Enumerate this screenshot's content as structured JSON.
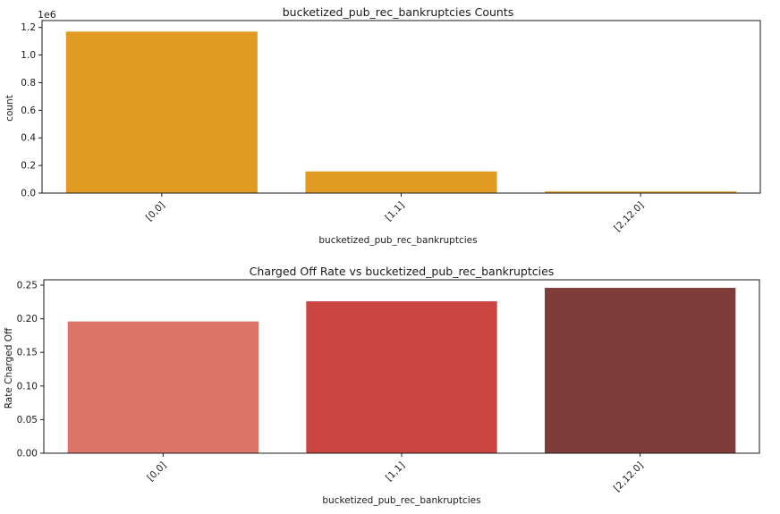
{
  "chart_data": [
    {
      "type": "bar",
      "title": "bucketized_pub_rec_bankruptcies Counts",
      "xlabel": "bucketized_pub_rec_bankruptcies",
      "ylabel": "count",
      "offset_label": "1e6",
      "categories": [
        "[0,0]",
        "[1,1]",
        "[2,12.0]"
      ],
      "values": [
        1170000,
        157000,
        12000
      ],
      "ylim": [
        0,
        1.25
      ],
      "yscale": 1000000,
      "yticks": [
        0.0,
        0.2,
        0.4,
        0.6,
        0.8,
        1.0,
        1.2
      ],
      "ytick_labels": [
        "0.0",
        "0.2",
        "0.4",
        "0.6",
        "0.8",
        "1.0",
        "1.2"
      ],
      "colors": [
        "#e09c22",
        "#e09c22",
        "#e09c22"
      ],
      "grid": false
    },
    {
      "type": "bar",
      "title": "Charged Off Rate vs bucketized_pub_rec_bankruptcies",
      "xlabel": "bucketized_pub_rec_bankruptcies",
      "ylabel": "Rate Charged Off",
      "categories": [
        "[0,0]",
        "[1,1]",
        "[2,12.0]"
      ],
      "values": [
        0.196,
        0.226,
        0.246
      ],
      "ylim": [
        0,
        0.258
      ],
      "yscale": 1,
      "yticks": [
        0.0,
        0.05,
        0.1,
        0.15,
        0.2,
        0.25
      ],
      "ytick_labels": [
        "0.00",
        "0.05",
        "0.10",
        "0.15",
        "0.20",
        "0.25"
      ],
      "colors": [
        "#dc7568",
        "#cb4540",
        "#7f3c38"
      ],
      "grid": false
    }
  ]
}
